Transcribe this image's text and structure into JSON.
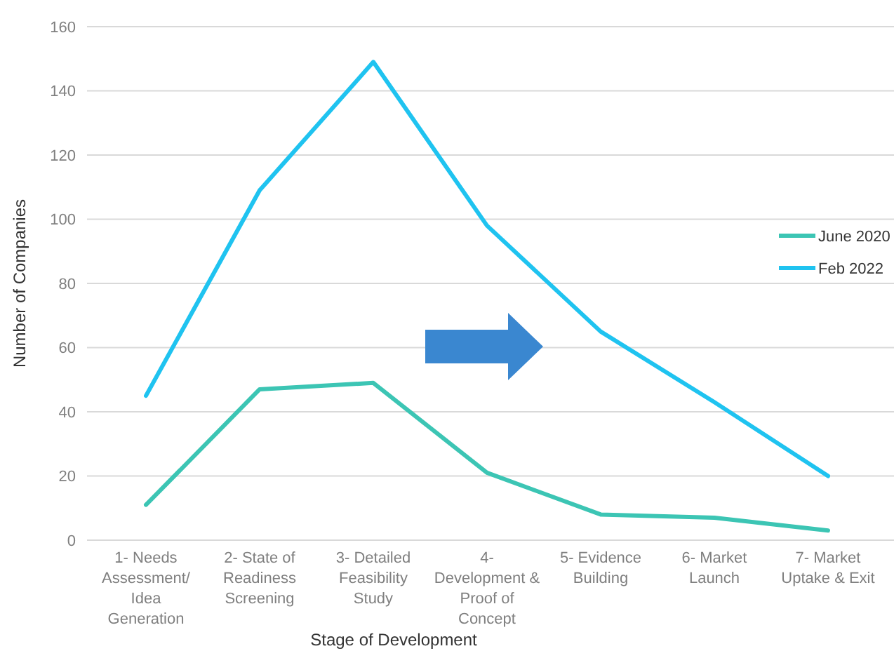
{
  "chart_data": {
    "type": "line",
    "xlabel": "Stage of Development",
    "ylabel": "Number of Companies",
    "categories": [
      "1- Needs Assessment/ Idea Generation",
      "2- State of Readiness Screening",
      "3- Detailed Feasibility Study",
      "4- Development & Proof of Concept",
      "5- Evidence Building",
      "6- Market Launch",
      "7- Market Uptake & Exit"
    ],
    "series": [
      {
        "name": "June 2020",
        "color": "#3cc5b4",
        "values": [
          11,
          47,
          49,
          21,
          8,
          7,
          3
        ]
      },
      {
        "name": "Feb  2022",
        "color": "#1fc3f0",
        "values": [
          45,
          109,
          149,
          98,
          65,
          43,
          20
        ]
      }
    ],
    "ylim": [
      0,
      160
    ],
    "yticks": [
      0,
      20,
      40,
      60,
      80,
      100,
      120,
      140,
      160
    ],
    "grid": "y",
    "legend": "right",
    "marker": "none",
    "line_style": "solid"
  }
}
